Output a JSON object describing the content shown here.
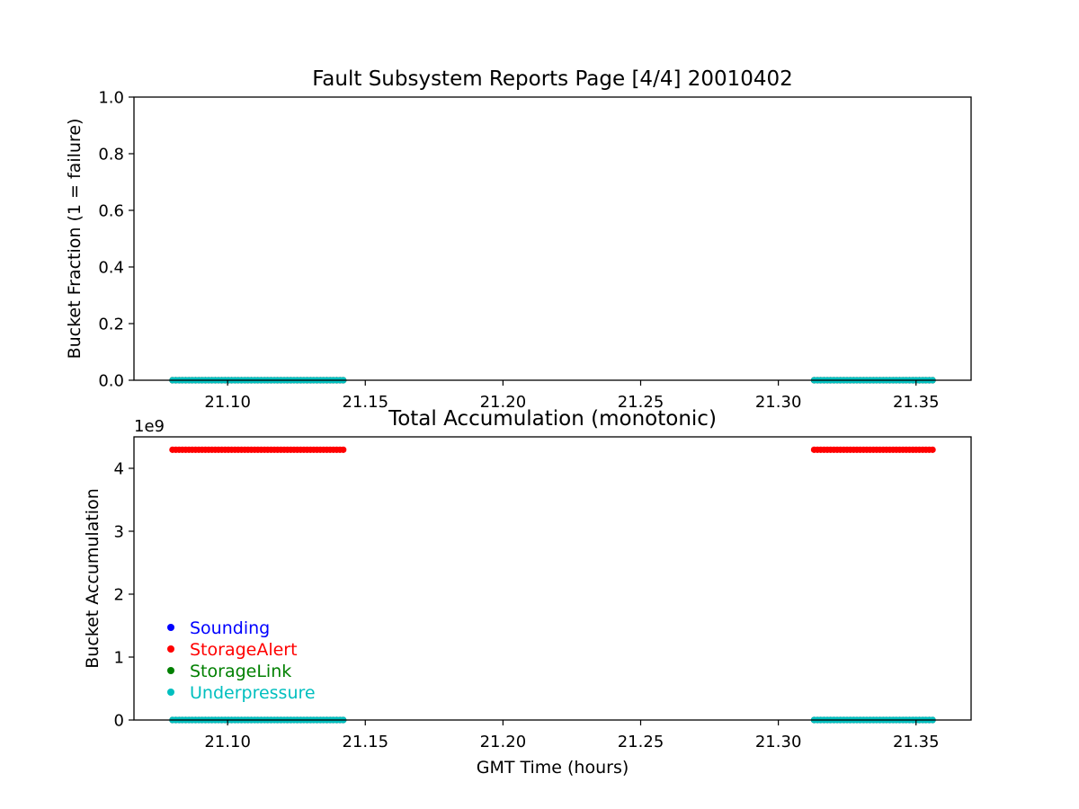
{
  "chart_data": [
    {
      "type": "scatter",
      "title": "Fault Subsystem Reports Page [4/4] 20010402",
      "xlabel": "",
      "ylabel": "Bucket Fraction (1 = failure)",
      "xlim": [
        21.066,
        21.37
      ],
      "ylim": [
        0.0,
        1.0
      ],
      "x_ticks": [
        "21.10",
        "21.15",
        "21.20",
        "21.25",
        "21.30",
        "21.35"
      ],
      "y_ticks": [
        "0.0",
        "0.2",
        "0.4",
        "0.6",
        "0.8",
        "1.0"
      ],
      "series": [
        {
          "name": "Sounding",
          "color": "#0000ff",
          "segments": [
            {
              "x_start": 21.08,
              "x_end": 21.142,
              "y": 0
            },
            {
              "x_start": 21.313,
              "x_end": 21.356,
              "y": 0
            }
          ]
        },
        {
          "name": "StorageAlert",
          "color": "#ff0000",
          "segments": [
            {
              "x_start": 21.08,
              "x_end": 21.142,
              "y": 0
            },
            {
              "x_start": 21.313,
              "x_end": 21.356,
              "y": 0
            }
          ]
        },
        {
          "name": "StorageLink",
          "color": "#008000",
          "segments": [
            {
              "x_start": 21.08,
              "x_end": 21.142,
              "y": 0
            },
            {
              "x_start": 21.313,
              "x_end": 21.356,
              "y": 0
            }
          ]
        },
        {
          "name": "Underpressure",
          "color": "#00bfbf",
          "segments": [
            {
              "x_start": 21.08,
              "x_end": 21.142,
              "y": 0
            },
            {
              "x_start": 21.313,
              "x_end": 21.356,
              "y": 0
            }
          ]
        }
      ]
    },
    {
      "type": "scatter",
      "title": "Total Accumulation (monotonic)",
      "xlabel": "GMT Time (hours)",
      "ylabel": "Bucket Accumulation",
      "y_offset_label": "1e9",
      "xlim": [
        21.066,
        21.37
      ],
      "ylim": [
        0.0,
        4.5
      ],
      "x_ticks": [
        "21.10",
        "21.15",
        "21.20",
        "21.25",
        "21.30",
        "21.35"
      ],
      "y_ticks": [
        "0",
        "1",
        "2",
        "3",
        "4"
      ],
      "legend_location": "lower-left",
      "series": [
        {
          "name": "Sounding",
          "color": "#0000ff",
          "segments": [
            {
              "x_start": 21.08,
              "x_end": 21.142,
              "y": 0
            },
            {
              "x_start": 21.313,
              "x_end": 21.356,
              "y": 0
            }
          ]
        },
        {
          "name": "StorageAlert",
          "color": "#ff0000",
          "segments": [
            {
              "x_start": 21.08,
              "x_end": 21.142,
              "y": 4.295
            },
            {
              "x_start": 21.313,
              "x_end": 21.356,
              "y": 4.295
            }
          ]
        },
        {
          "name": "StorageLink",
          "color": "#008000",
          "segments": [
            {
              "x_start": 21.08,
              "x_end": 21.142,
              "y": 0
            },
            {
              "x_start": 21.313,
              "x_end": 21.356,
              "y": 0
            }
          ]
        },
        {
          "name": "Underpressure",
          "color": "#00bfbf",
          "segments": [
            {
              "x_start": 21.08,
              "x_end": 21.142,
              "y": 0
            },
            {
              "x_start": 21.313,
              "x_end": 21.356,
              "y": 0
            }
          ]
        }
      ]
    }
  ]
}
